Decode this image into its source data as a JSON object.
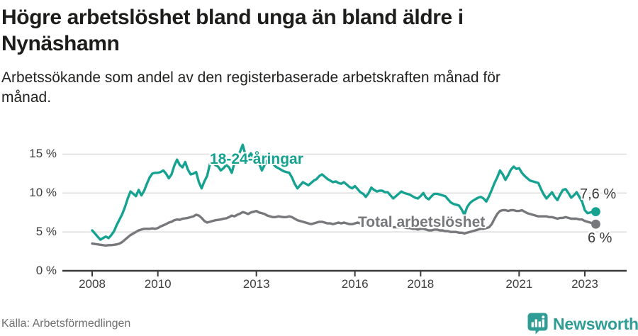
{
  "header": {
    "title_lines": [
      "Högre arbetslöshet bland unga än bland äldre i",
      "Nynäshamn"
    ],
    "subtitle_lines": [
      "Arbetssökande som andel av den registerbaserade arbetskraften månad för",
      "månad."
    ]
  },
  "footer": {
    "source": "Källa: Arbetsförmedlingen",
    "logo_text": "Newsworthy"
  },
  "colors": {
    "accent_teal": "#16a291",
    "series_gray": "#77787b",
    "gridline": "#dedede",
    "axis": "#3a3a3a",
    "end_label_text": "#3a3a3a",
    "logo_teal": "#2f9c95"
  },
  "chart_data": {
    "type": "line",
    "unit": "%",
    "x_start_year": 2008.0,
    "x_step_months": 1,
    "x_ticks": [
      {
        "value": 2008,
        "label": "2008"
      },
      {
        "value": 2010,
        "label": "2010"
      },
      {
        "value": 2013,
        "label": "2013"
      },
      {
        "value": 2016,
        "label": "2016"
      },
      {
        "value": 2018,
        "label": "2018"
      },
      {
        "value": 2021,
        "label": "2021"
      },
      {
        "value": 2023,
        "label": "2023"
      }
    ],
    "y_ticks": [
      {
        "value": 0,
        "label": "0 %"
      },
      {
        "value": 5,
        "label": "5 %"
      },
      {
        "value": 10,
        "label": "10 %"
      },
      {
        "value": 15,
        "label": "15 %"
      }
    ],
    "ylim": [
      0,
      16.8
    ],
    "grid": true,
    "series": [
      {
        "name": "18-24-åringar",
        "color": "#16a291",
        "end_label": "7,6 %",
        "end_value": 7.6,
        "values": [
          5.2,
          4.8,
          4.4,
          4.0,
          4.2,
          4.4,
          4.2,
          4.6,
          5.1,
          5.9,
          6.6,
          7.3,
          8.2,
          9.3,
          10.2,
          9.9,
          9.6,
          10.4,
          9.7,
          10.3,
          11.2,
          12.0,
          12.5,
          12.6,
          12.6,
          12.7,
          12.9,
          12.5,
          11.9,
          12.4,
          13.5,
          14.3,
          13.6,
          13.3,
          14.0,
          13.0,
          12.4,
          12.5,
          12.7,
          11.4,
          10.6,
          11.5,
          12.2,
          13.7,
          13.9,
          13.6,
          13.4,
          12.9,
          13.2,
          13.6,
          13.3,
          12.6,
          13.9,
          14.6,
          15.3,
          16.2,
          14.9,
          14.6,
          15.1,
          14.5,
          14.2,
          13.8,
          12.9,
          13.6,
          14.2,
          14.4,
          13.8,
          13.4,
          13.2,
          13.0,
          12.8,
          12.7,
          12.6,
          12.0,
          11.2,
          10.6,
          11.0,
          11.4,
          11.2,
          11.0,
          11.3,
          11.6,
          11.8,
          12.2,
          12.4,
          12.1,
          11.8,
          11.6,
          11.4,
          11.5,
          11.3,
          11.2,
          11.4,
          11.1,
          10.8,
          10.6,
          10.9,
          10.5,
          10.1,
          9.9,
          9.5,
          10.0,
          10.7,
          10.4,
          10.2,
          10.3,
          10.3,
          10.1,
          10.1,
          9.7,
          9.3,
          9.6,
          9.9,
          10.2,
          10.0,
          9.9,
          9.8,
          9.6,
          9.4,
          9.3,
          9.6,
          10.0,
          9.4,
          9.2,
          9.6,
          9.9,
          9.9,
          9.8,
          9.7,
          9.6,
          9.2,
          8.8,
          8.6,
          8.5,
          8.4,
          7.9,
          7.2,
          8.2,
          8.7,
          9.0,
          9.2,
          9.4,
          9.5,
          9.3,
          8.9,
          9.6,
          10.4,
          11.3,
          12.0,
          12.9,
          12.4,
          11.7,
          12.3,
          13.0,
          13.4,
          13.1,
          13.2,
          12.6,
          12.2,
          11.9,
          11.6,
          11.5,
          11.4,
          11.3,
          10.5,
          9.8,
          9.3,
          9.7,
          10.1,
          9.5,
          9.1,
          9.8,
          10.4,
          10.5,
          10.0,
          9.4,
          9.7,
          10.1,
          9.5,
          8.9,
          7.8,
          7.4,
          7.5,
          7.55,
          7.6
        ]
      },
      {
        "name": "Total arbetslöshet",
        "color": "#77787b",
        "end_label": "6 %",
        "end_value": 6.0,
        "values": [
          3.5,
          3.45,
          3.4,
          3.35,
          3.3,
          3.25,
          3.3,
          3.3,
          3.35,
          3.4,
          3.5,
          3.7,
          4.0,
          4.3,
          4.6,
          4.8,
          5.0,
          5.2,
          5.3,
          5.4,
          5.4,
          5.4,
          5.45,
          5.4,
          5.5,
          5.7,
          5.85,
          6.0,
          6.2,
          6.3,
          6.5,
          6.6,
          6.55,
          6.7,
          6.75,
          6.8,
          6.9,
          7.0,
          7.2,
          7.1,
          6.8,
          6.4,
          6.2,
          6.3,
          6.4,
          6.5,
          6.55,
          6.6,
          6.7,
          6.75,
          6.9,
          7.1,
          7.0,
          7.2,
          7.35,
          7.55,
          7.45,
          7.3,
          7.5,
          7.6,
          7.7,
          7.5,
          7.4,
          7.3,
          7.1,
          7.0,
          6.9,
          6.9,
          7.0,
          6.95,
          6.9,
          6.9,
          7.0,
          6.9,
          6.7,
          6.5,
          6.4,
          6.3,
          6.2,
          6.1,
          6.0,
          6.1,
          6.2,
          6.3,
          6.3,
          6.2,
          6.1,
          6.1,
          6.0,
          6.1,
          6.2,
          6.1,
          6.2,
          6.1,
          6.0,
          6.0,
          6.1,
          6.2,
          6.1,
          6.0,
          5.9,
          5.9,
          6.0,
          5.9,
          5.9,
          5.8,
          5.8,
          5.8,
          5.8,
          5.7,
          5.6,
          5.6,
          5.6,
          5.7,
          5.6,
          5.5,
          5.5,
          5.4,
          5.4,
          5.3,
          5.4,
          5.4,
          5.3,
          5.2,
          5.2,
          5.3,
          5.3,
          5.2,
          5.2,
          5.1,
          5.1,
          5.0,
          5.0,
          5.0,
          4.9,
          4.9,
          4.8,
          4.9,
          5.0,
          5.1,
          5.2,
          5.3,
          5.4,
          5.4,
          5.5,
          5.6,
          6.0,
          6.7,
          7.3,
          7.7,
          7.8,
          7.8,
          7.7,
          7.8,
          7.8,
          7.7,
          7.7,
          7.8,
          7.6,
          7.4,
          7.3,
          7.2,
          7.1,
          7.0,
          7.0,
          7.0,
          7.0,
          6.9,
          6.9,
          6.8,
          6.7,
          6.8,
          6.8,
          6.9,
          6.8,
          6.7,
          6.7,
          6.7,
          6.6,
          6.6,
          6.4,
          6.3,
          6.2,
          6.1,
          6.0
        ]
      }
    ]
  }
}
